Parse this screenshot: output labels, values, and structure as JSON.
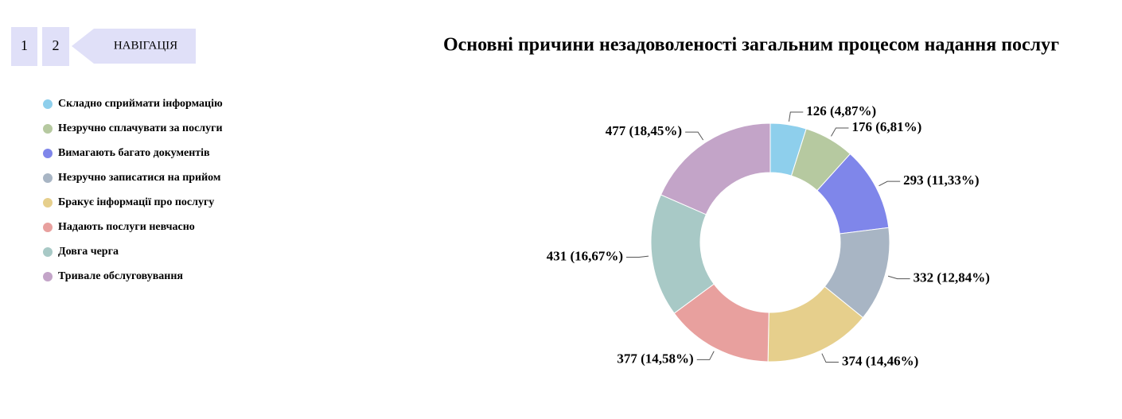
{
  "nav": {
    "pages": [
      "1",
      "2"
    ],
    "label": "НАВІГАЦІЯ"
  },
  "chart_data": {
    "type": "donut",
    "title": "Основні причини незадоволеності загальним процесом надання послуг",
    "categories": [
      "Складно сприймати інформацію",
      "Незручно сплачувати за послуги",
      "Вимагають багато документів",
      "Незручно записатися на прийом",
      "Бракує інформації про послугу",
      "Надають послуги невчасно",
      "Довга черга",
      "Тривале обслуговування"
    ],
    "values": [
      126,
      176,
      293,
      332,
      374,
      377,
      431,
      477
    ],
    "value_labels": [
      "126 (4,87%)",
      "176 (6,81%)",
      "293 (11,33%)",
      "332 (12,84%)",
      "374 (14,46%)",
      "377 (14,58%)",
      "431 (16,67%)",
      "477 (18,45%)"
    ],
    "colors": [
      "#8ecfec",
      "#b6c9a0",
      "#7f86ea",
      "#a8b5c4",
      "#e6cf8c",
      "#e8a09e",
      "#a8c9c6",
      "#c3a4c8"
    ],
    "legend": "left"
  }
}
